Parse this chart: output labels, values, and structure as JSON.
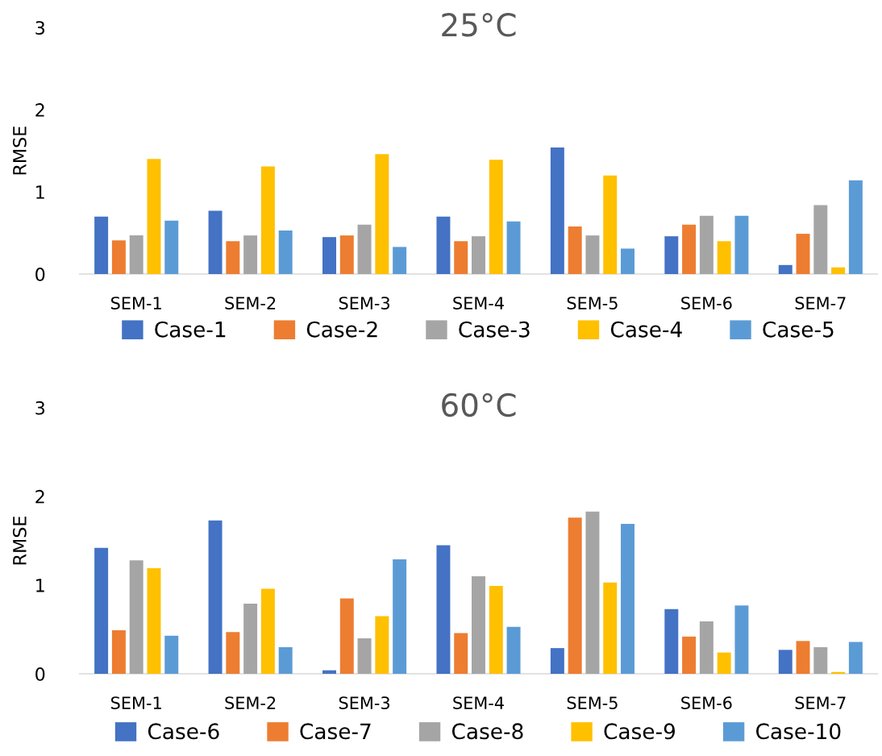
{
  "chart_data": [
    {
      "type": "bar",
      "title": "25°C",
      "ylabel": "RMSE",
      "categories": [
        "SEM-1",
        "SEM-2",
        "SEM-3",
        "SEM-4",
        "SEM-5",
        "SEM-6",
        "SEM-7"
      ],
      "ylim": [
        0,
        3
      ],
      "yticks": [
        0,
        1,
        2,
        3
      ],
      "grid": false,
      "legend": "bottom",
      "series": [
        {
          "name": "Case-1",
          "color": "#4472c4",
          "values": [
            0.7,
            0.77,
            0.45,
            0.7,
            1.54,
            0.46,
            0.11
          ]
        },
        {
          "name": "Case-2",
          "color": "#ed7d31",
          "values": [
            0.41,
            0.4,
            0.47,
            0.4,
            0.58,
            0.6,
            0.49
          ]
        },
        {
          "name": "Case-3",
          "color": "#a5a5a5",
          "values": [
            0.47,
            0.47,
            0.6,
            0.46,
            0.47,
            0.71,
            0.84
          ]
        },
        {
          "name": "Case-4",
          "color": "#ffc000",
          "values": [
            1.4,
            1.31,
            1.46,
            1.39,
            1.2,
            0.4,
            0.08
          ]
        },
        {
          "name": "Case-5",
          "color": "#5b9bd5",
          "values": [
            0.65,
            0.53,
            0.33,
            0.64,
            0.31,
            0.71,
            1.14
          ]
        }
      ]
    },
    {
      "type": "bar",
      "title": "60°C",
      "ylabel": "RMSE",
      "categories": [
        "SEM-1",
        "SEM-2",
        "SEM-3",
        "SEM-4",
        "SEM-5",
        "SEM-6",
        "SEM-7"
      ],
      "ylim": [
        0,
        3
      ],
      "yticks": [
        0,
        1,
        2,
        3
      ],
      "grid": false,
      "legend": "bottom",
      "series": [
        {
          "name": "Case-6",
          "color": "#4472c4",
          "values": [
            1.42,
            1.73,
            0.04,
            1.45,
            0.29,
            0.73,
            0.27
          ]
        },
        {
          "name": "Case-7",
          "color": "#ed7d31",
          "values": [
            0.49,
            0.47,
            0.85,
            0.46,
            1.76,
            0.42,
            0.37
          ]
        },
        {
          "name": "Case-8",
          "color": "#a5a5a5",
          "values": [
            1.28,
            0.79,
            0.4,
            1.1,
            1.83,
            0.59,
            0.3
          ]
        },
        {
          "name": "Case-9",
          "color": "#ffc000",
          "values": [
            1.19,
            0.96,
            0.65,
            0.99,
            1.03,
            0.24,
            0.02
          ]
        },
        {
          "name": "Case-10",
          "color": "#5b9bd5",
          "values": [
            0.43,
            0.3,
            1.29,
            0.53,
            1.69,
            0.77,
            0.36
          ]
        }
      ]
    }
  ]
}
